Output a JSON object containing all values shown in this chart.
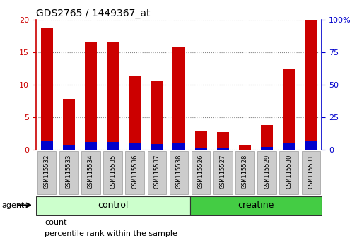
{
  "title": "GDS2765 / 1449367_at",
  "categories": [
    "GSM115532",
    "GSM115533",
    "GSM115534",
    "GSM115535",
    "GSM115536",
    "GSM115537",
    "GSM115538",
    "GSM115526",
    "GSM115527",
    "GSM115528",
    "GSM115529",
    "GSM115530",
    "GSM115531"
  ],
  "count_values": [
    18.8,
    7.9,
    16.6,
    16.6,
    11.5,
    10.6,
    15.8,
    2.9,
    2.8,
    0.8,
    3.9,
    12.5,
    20.0
  ],
  "percentile_values": [
    6.5,
    3.4,
    6.0,
    6.0,
    5.5,
    4.6,
    5.5,
    1.3,
    2.0,
    0.3,
    2.3,
    5.0,
    6.5
  ],
  "groups": [
    {
      "label": "control",
      "start": 0,
      "end": 7,
      "color": "#ccffcc"
    },
    {
      "label": "creatine",
      "start": 7,
      "end": 13,
      "color": "#44cc44"
    }
  ],
  "ylim_left": [
    0,
    20
  ],
  "ylim_right": [
    0,
    100
  ],
  "yticks_left": [
    0,
    5,
    10,
    15,
    20
  ],
  "yticks_right": [
    0,
    25,
    50,
    75,
    100
  ],
  "bar_color": "#cc0000",
  "percentile_color": "#0000cc",
  "grid_color": "#888888",
  "title_color": "#000000",
  "left_axis_color": "#cc0000",
  "right_axis_color": "#0000cc",
  "bar_width": 0.55,
  "agent_label": "agent",
  "legend_count": "count",
  "legend_percentile": "percentile rank within the sample",
  "tick_bg_color": "#cccccc",
  "tick_border_color": "#999999",
  "group_border_color": "#333333"
}
